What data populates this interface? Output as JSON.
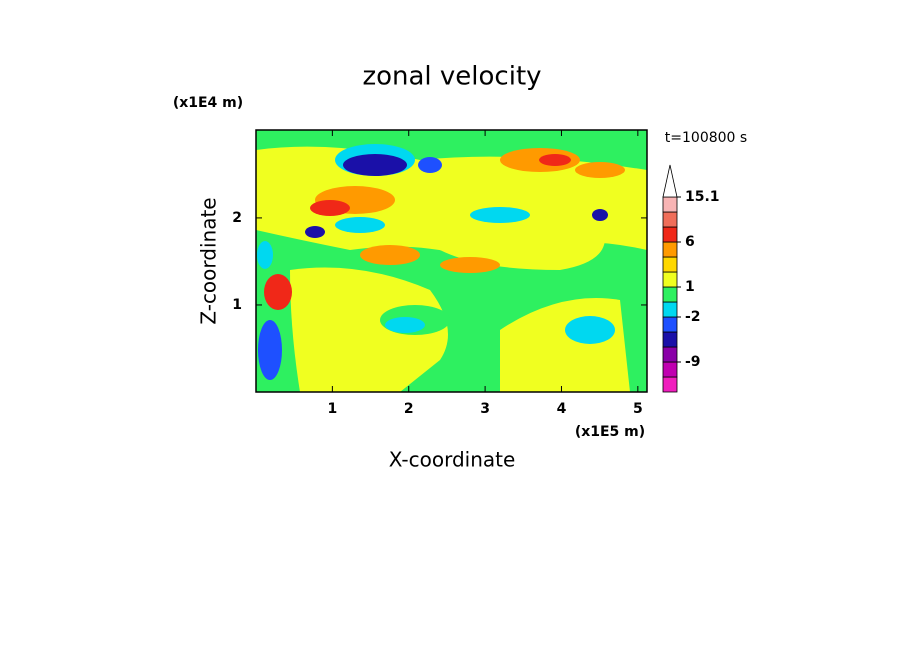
{
  "chart_data": {
    "type": "contour",
    "title": "zonal velocity",
    "x_label": "X-coordinate",
    "y_label": "Z-coordinate",
    "x_unit": "(x1E5 m)",
    "y_unit": "(x1E4 m)",
    "time_label": "t=100800 s",
    "xlim": [
      0,
      5.12
    ],
    "xticks": [
      1,
      2,
      3,
      4,
      5
    ],
    "ylim": [
      0,
      3.01
    ],
    "yticks": [
      1,
      2
    ],
    "colorbar": {
      "levels": [
        -15,
        -12,
        -9,
        -6,
        -3,
        -2,
        -1,
        1,
        2,
        3,
        6,
        9,
        12,
        15.1
      ],
      "colors": [
        "#f01ebe",
        "#c000b0",
        "#8a00a8",
        "#1a10a8",
        "#1e50ff",
        "#00d8f0",
        "#2ef060",
        "#f0ff20",
        "#ffd800",
        "#ff9a00",
        "#f02818",
        "#f06e5a",
        "#f8b4b4"
      ],
      "ticks": [
        15.1,
        6,
        1,
        -2,
        -9
      ],
      "extend_color": "#ffffff"
    }
  }
}
